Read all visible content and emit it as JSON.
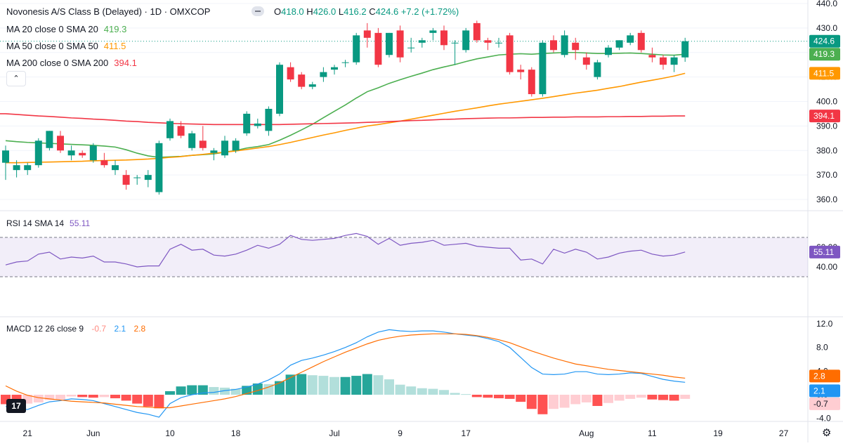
{
  "header": {
    "title": "Novonesis A/S Class B (Delayed) · 1D · OMXCOP",
    "ohlc": [
      {
        "k": "O",
        "v": "418.0"
      },
      {
        "k": "H",
        "v": "426.0"
      },
      {
        "k": "L",
        "v": "416.2"
      },
      {
        "k": "C",
        "v": "424.6"
      },
      {
        "k": "",
        "v": "+7.2 (+1.72%)"
      }
    ]
  },
  "legend": [
    {
      "label": "MA 20 close 0 SMA 20",
      "value": "419.3",
      "color": "#4caf50"
    },
    {
      "label": "MA 50 close 0 SMA 50",
      "value": "411.5",
      "color": "#ff9800"
    },
    {
      "label": "MA 200 close 0 SMA 200",
      "value": "394.1",
      "color": "#f23645"
    }
  ],
  "collapse_icon": "chevron-up-icon",
  "settings_icon": "gear-icon",
  "logo_text": "17",
  "colors": {
    "up": "#089981",
    "down": "#f23645",
    "rsi": "#7e57c2",
    "macd": "#2196f3",
    "signal": "#ff6d00",
    "hist_up_strong": "#26a69a",
    "hist_up_weak": "#b2dfdb",
    "hist_down_strong": "#ff5252",
    "hist_down_weak": "#ffcdd2"
  },
  "chart_data": [
    {
      "type": "candlestick",
      "ylim": [
        352,
        442
      ],
      "yticks": [
        "360.0",
        "370.0",
        "380.0",
        "390.0",
        "400.0",
        "410.0",
        "420.0",
        "430.0",
        "440.0"
      ],
      "xticks": [
        "21",
        "Jun",
        "10",
        "18",
        "Jul",
        "9",
        "17",
        "Aug",
        "11",
        "19",
        "27"
      ],
      "candles": [
        {
          "o": 375.0,
          "h": 382.0,
          "l": 368.0,
          "c": 380.0
        },
        {
          "o": 372.0,
          "h": 376.0,
          "l": 369.0,
          "c": 374.0
        },
        {
          "o": 372.0,
          "h": 375.0,
          "l": 370.0,
          "c": 374.0
        },
        {
          "o": 374.0,
          "h": 385.0,
          "l": 373.0,
          "c": 384.0
        },
        {
          "o": 381.0,
          "h": 388.0,
          "l": 380.0,
          "c": 388.0
        },
        {
          "o": 386.0,
          "h": 388.0,
          "l": 379.0,
          "c": 380.0
        },
        {
          "o": 378.0,
          "h": 382.0,
          "l": 376.0,
          "c": 380.0
        },
        {
          "o": 379.0,
          "h": 380.0,
          "l": 377.0,
          "c": 378.0
        },
        {
          "o": 376.0,
          "h": 383.0,
          "l": 375.0,
          "c": 382.0
        },
        {
          "o": 376.0,
          "h": 379.0,
          "l": 373.0,
          "c": 374.0
        },
        {
          "o": 372.0,
          "h": 376.0,
          "l": 370.0,
          "c": 374.0
        },
        {
          "o": 370.0,
          "h": 372.0,
          "l": 364.0,
          "c": 366.0
        },
        {
          "o": 369.0,
          "h": 370.0,
          "l": 366.0,
          "c": 369.0
        },
        {
          "o": 368.0,
          "h": 372.0,
          "l": 365.0,
          "c": 370.0
        },
        {
          "o": 363.0,
          "h": 384.0,
          "l": 362.0,
          "c": 383.0
        },
        {
          "o": 385.0,
          "h": 393.0,
          "l": 384.0,
          "c": 392.0
        },
        {
          "o": 390.0,
          "h": 392.0,
          "l": 385.0,
          "c": 386.0
        },
        {
          "o": 381.0,
          "h": 388.0,
          "l": 380.0,
          "c": 387.0
        },
        {
          "o": 384.0,
          "h": 390.0,
          "l": 380.0,
          "c": 381.0
        },
        {
          "o": 379.0,
          "h": 381.0,
          "l": 376.0,
          "c": 380.0
        },
        {
          "o": 378.0,
          "h": 386.0,
          "l": 377.0,
          "c": 384.0
        },
        {
          "o": 380.0,
          "h": 385.0,
          "l": 379.0,
          "c": 384.0
        },
        {
          "o": 387.0,
          "h": 396.0,
          "l": 386.0,
          "c": 395.0
        },
        {
          "o": 390.0,
          "h": 393.0,
          "l": 389.0,
          "c": 391.0
        },
        {
          "o": 388.0,
          "h": 398.0,
          "l": 386.0,
          "c": 397.0
        },
        {
          "o": 395.0,
          "h": 416.0,
          "l": 394.0,
          "c": 415.0
        },
        {
          "o": 414.0,
          "h": 416.0,
          "l": 408.0,
          "c": 409.0
        },
        {
          "o": 411.0,
          "h": 412.0,
          "l": 405.0,
          "c": 406.0
        },
        {
          "o": 406.0,
          "h": 408.0,
          "l": 405.0,
          "c": 407.0
        },
        {
          "o": 410.0,
          "h": 414.0,
          "l": 408.0,
          "c": 412.0
        },
        {
          "o": 413.0,
          "h": 415.0,
          "l": 411.0,
          "c": 414.0
        },
        {
          "o": 416.0,
          "h": 417.0,
          "l": 414.0,
          "c": 416.0
        },
        {
          "o": 416.0,
          "h": 428.0,
          "l": 415.0,
          "c": 427.0
        },
        {
          "o": 429.0,
          "h": 432.0,
          "l": 422.0,
          "c": 426.0
        },
        {
          "o": 428.0,
          "h": 430.0,
          "l": 414.0,
          "c": 415.0
        },
        {
          "o": 419.0,
          "h": 428.0,
          "l": 418.0,
          "c": 428.0
        },
        {
          "o": 429.0,
          "h": 431.0,
          "l": 416.0,
          "c": 418.0
        },
        {
          "o": 422.0,
          "h": 426.0,
          "l": 420.0,
          "c": 422.0
        },
        {
          "o": 424.0,
          "h": 426.0,
          "l": 422.0,
          "c": 425.0
        },
        {
          "o": 428.0,
          "h": 430.0,
          "l": 425.0,
          "c": 429.0
        },
        {
          "o": 429.0,
          "h": 431.0,
          "l": 421.0,
          "c": 423.0
        },
        {
          "o": 424.0,
          "h": 425.0,
          "l": 415.0,
          "c": 424.0
        },
        {
          "o": 421.0,
          "h": 430.0,
          "l": 420.0,
          "c": 429.0
        },
        {
          "o": 432.0,
          "h": 433.0,
          "l": 424.0,
          "c": 425.0
        },
        {
          "o": 425.0,
          "h": 426.0,
          "l": 421.0,
          "c": 424.0
        },
        {
          "o": 424.0,
          "h": 426.0,
          "l": 422.0,
          "c": 424.0
        },
        {
          "o": 427.0,
          "h": 428.0,
          "l": 411.0,
          "c": 412.0
        },
        {
          "o": 413.0,
          "h": 415.0,
          "l": 409.0,
          "c": 412.0
        },
        {
          "o": 413.0,
          "h": 414.0,
          "l": 402.0,
          "c": 403.0
        },
        {
          "o": 403.0,
          "h": 425.0,
          "l": 402.0,
          "c": 424.0
        },
        {
          "o": 425.0,
          "h": 427.0,
          "l": 420.0,
          "c": 421.0
        },
        {
          "o": 419.0,
          "h": 429.0,
          "l": 418.0,
          "c": 427.0
        },
        {
          "o": 424.0,
          "h": 426.0,
          "l": 417.0,
          "c": 421.0
        },
        {
          "o": 418.0,
          "h": 420.0,
          "l": 413.0,
          "c": 415.0
        },
        {
          "o": 410.0,
          "h": 417.0,
          "l": 409.0,
          "c": 416.0
        },
        {
          "o": 419.0,
          "h": 423.0,
          "l": 418.0,
          "c": 422.0
        },
        {
          "o": 422.0,
          "h": 425.0,
          "l": 421.0,
          "c": 425.0
        },
        {
          "o": 424.0,
          "h": 428.0,
          "l": 423.0,
          "c": 427.0
        },
        {
          "o": 428.0,
          "h": 429.0,
          "l": 420.0,
          "c": 421.0
        },
        {
          "o": 419.0,
          "h": 422.0,
          "l": 416.0,
          "c": 418.0
        },
        {
          "o": 418.0,
          "h": 419.0,
          "l": 413.0,
          "c": 415.0
        },
        {
          "o": 415.0,
          "h": 419.0,
          "l": 412.0,
          "c": 418.0
        },
        {
          "o": 418.0,
          "h": 426.0,
          "l": 416.2,
          "c": 424.6
        }
      ],
      "series": [
        {
          "name": "MA 20 close 0 SMA 20",
          "color": "#4caf50",
          "values": [
            384.0,
            383.6,
            383.3,
            383.1,
            382.9,
            382.7,
            382.5,
            382.3,
            382.1,
            381.8,
            381.4,
            380.3,
            378.9,
            377.8,
            377.2,
            377.4,
            377.6,
            378.0,
            378.3,
            378.6,
            379.3,
            380.0,
            381.0,
            381.6,
            382.4,
            384.2,
            386.2,
            388.4,
            390.7,
            393.4,
            396.0,
            398.6,
            401.4,
            404.0,
            405.6,
            407.4,
            408.9,
            410.3,
            411.6,
            413.0,
            414.1,
            415.1,
            416.3,
            417.4,
            418.2,
            419.0,
            419.3,
            419.5,
            419.3,
            419.6,
            419.8,
            420.0,
            420.0,
            419.8,
            419.6,
            419.6,
            419.7,
            419.8,
            419.6,
            419.3,
            419.0,
            418.9,
            419.3
          ]
        },
        {
          "name": "MA 50 close 0 SMA 50",
          "color": "#ff9800",
          "values": [
            375.0,
            375.0,
            375.1,
            375.2,
            375.3,
            375.4,
            375.5,
            375.6,
            375.8,
            375.9,
            376.0,
            376.1,
            376.3,
            376.5,
            376.8,
            377.2,
            377.5,
            378.0,
            378.4,
            378.9,
            379.3,
            379.8,
            380.4,
            381.0,
            381.6,
            382.4,
            383.3,
            384.3,
            385.3,
            386.3,
            387.2,
            388.2,
            389.1,
            390.0,
            390.6,
            391.3,
            392.0,
            392.8,
            393.6,
            394.4,
            395.2,
            396.0,
            396.7,
            397.4,
            398.2,
            398.9,
            399.5,
            400.1,
            400.7,
            401.3,
            402.0,
            402.7,
            403.4,
            404.0,
            404.6,
            405.4,
            406.1,
            407.0,
            407.9,
            408.7,
            409.5,
            410.4,
            411.5
          ]
        },
        {
          "name": "MA 200 close 0 SMA 200",
          "color": "#f23645",
          "values": [
            395.0,
            394.7,
            394.4,
            394.1,
            393.9,
            393.6,
            393.3,
            393.1,
            392.8,
            392.6,
            392.3,
            392.0,
            391.8,
            391.5,
            391.3,
            391.1,
            390.9,
            390.8,
            390.7,
            390.6,
            390.6,
            390.6,
            390.6,
            390.6,
            390.6,
            390.6,
            390.7,
            390.8,
            390.9,
            391.0,
            391.1,
            391.2,
            391.3,
            391.5,
            391.6,
            391.8,
            392.0,
            392.2,
            392.3,
            392.5,
            392.7,
            392.8,
            393.0,
            393.1,
            393.2,
            393.3,
            393.3,
            393.4,
            393.5,
            393.5,
            393.6,
            393.6,
            393.7,
            393.7,
            393.7,
            393.8,
            393.8,
            393.9,
            393.9,
            394.0,
            394.0,
            394.1,
            394.1
          ]
        }
      ],
      "price_labels": [
        {
          "value": "440.0",
          "y": 440,
          "kind": "tick"
        },
        {
          "text": "424.6",
          "y": 424.6,
          "color": "#089981"
        },
        {
          "text": "419.3",
          "y": 419.3,
          "color": "#4caf50"
        },
        {
          "text": "411.5",
          "y": 411.5,
          "color": "#ff9800"
        },
        {
          "text": "394.1",
          "y": 394.1,
          "color": "#f23645"
        }
      ]
    },
    {
      "type": "line",
      "title": "RSI 14 SMA 14",
      "value_label": "55.11",
      "ylim": [
        20,
        85
      ],
      "band": [
        30,
        70
      ],
      "yticks": [
        "40.00",
        "60.00"
      ],
      "series": [
        {
          "name": "RSI 14 SMA 14",
          "color": "#7e57c2",
          "values": [
            42.0,
            45.0,
            46.0,
            53.0,
            55.0,
            48.0,
            50.0,
            49.0,
            51.0,
            45.0,
            45.0,
            43.0,
            40.0,
            41.0,
            41.0,
            58.0,
            63.0,
            57.0,
            58.0,
            52.0,
            51.0,
            53.0,
            57.0,
            62.0,
            59.0,
            63.0,
            72.0,
            68.0,
            67.0,
            68.0,
            69.0,
            72.0,
            74.0,
            71.0,
            63.0,
            69.0,
            62.0,
            64.0,
            65.0,
            67.0,
            62.0,
            63.0,
            64.0,
            61.0,
            60.0,
            59.0,
            59.0,
            47.0,
            48.0,
            43.0,
            58.0,
            54.0,
            58.0,
            55.0,
            48.0,
            50.0,
            54.0,
            56.0,
            57.0,
            53.0,
            51.0,
            52.0,
            55.11
          ]
        }
      ]
    },
    {
      "type": "bar",
      "title": "MACD 12 26 close 9",
      "value_labels": [
        "-0.7",
        "2.1",
        "2.8"
      ],
      "ylim": [
        -5.2,
        13.2
      ],
      "yticks": [
        "-4.0",
        "0.0",
        "4.0",
        "8.0",
        "12.0"
      ],
      "histogram": [
        -1.6,
        -1.7,
        -1.5,
        -1.3,
        -0.9,
        -0.8,
        -0.3,
        -0.4,
        -0.5,
        -0.4,
        -0.6,
        -1.0,
        -1.5,
        -2.0,
        -2.3,
        0.6,
        1.4,
        1.6,
        1.6,
        1.3,
        1.2,
        1.0,
        1.5,
        1.9,
        1.8,
        2.3,
        3.4,
        3.5,
        3.3,
        3.2,
        3.0,
        3.0,
        3.2,
        3.5,
        3.3,
        2.6,
        1.7,
        1.4,
        1.1,
        1.0,
        0.8,
        0.3,
        0.1,
        -0.4,
        -0.5,
        -0.6,
        -0.7,
        -1.2,
        -2.4,
        -3.3,
        -2.4,
        -2.2,
        -1.6,
        -1.3,
        -1.9,
        -1.4,
        -1.0,
        -0.7,
        -0.5,
        -0.8,
        -0.9,
        -1.0,
        -0.7
      ],
      "series": [
        {
          "name": "MACD",
          "color": "#2196f3",
          "values": [
            -2.0,
            -2.3,
            -2.5,
            -1.8,
            -1.2,
            -1.0,
            -0.7,
            -0.8,
            -1.0,
            -1.5,
            -2.0,
            -2.5,
            -3.0,
            -3.3,
            -3.8,
            -1.5,
            -0.5,
            0.0,
            0.3,
            0.4,
            0.7,
            0.9,
            1.3,
            1.8,
            2.5,
            3.5,
            5.0,
            5.8,
            6.2,
            6.7,
            7.3,
            8.0,
            8.8,
            9.8,
            10.6,
            11.0,
            10.8,
            10.7,
            10.8,
            10.8,
            10.6,
            10.3,
            10.1,
            9.9,
            9.5,
            9.0,
            8.0,
            6.3,
            4.6,
            3.5,
            3.4,
            3.5,
            3.9,
            3.9,
            3.5,
            3.4,
            3.5,
            3.7,
            3.6,
            3.1,
            2.6,
            2.3,
            2.1
          ]
        },
        {
          "name": "Signal",
          "color": "#ff6d00",
          "values": [
            1.5,
            0.6,
            -0.1,
            -0.5,
            -0.7,
            -0.9,
            -1.1,
            -1.2,
            -1.3,
            -1.4,
            -1.6,
            -1.8,
            -2.0,
            -2.1,
            -2.2,
            -2.2,
            -1.9,
            -1.6,
            -1.3,
            -1.0,
            -0.7,
            -0.3,
            0.2,
            0.7,
            1.3,
            2.0,
            2.9,
            3.8,
            4.7,
            5.6,
            6.4,
            7.2,
            7.9,
            8.6,
            9.2,
            9.6,
            9.9,
            10.1,
            10.2,
            10.3,
            10.3,
            10.3,
            10.2,
            10.0,
            9.7,
            9.3,
            8.8,
            8.1,
            7.4,
            6.8,
            6.2,
            5.7,
            5.2,
            4.9,
            4.6,
            4.3,
            4.1,
            3.9,
            3.7,
            3.5,
            3.3,
            3.0,
            2.8
          ]
        }
      ]
    }
  ]
}
